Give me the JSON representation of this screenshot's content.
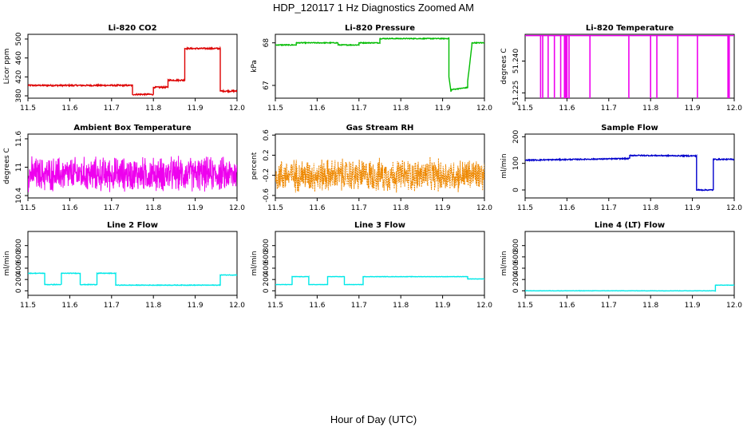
{
  "figure": {
    "title": "HDP_120117  1 Hz Diagnostics Zoomed AM",
    "xlabel": "Hour of Day (UTC)"
  },
  "chart_data": [
    {
      "type": "line",
      "title": "Li-820 CO2",
      "xlabel": "",
      "ylabel": "Licor ppm",
      "color": "#dd0000",
      "xlim": [
        11.5,
        12.0
      ],
      "ylim": [
        375,
        510
      ],
      "xticks": [
        "11.5",
        "11.6",
        "11.7",
        "11.8",
        "11.9",
        "12.0"
      ],
      "yticks": [
        380,
        420,
        460,
        500
      ],
      "x": [
        11.5,
        11.75,
        11.75,
        11.8,
        11.8,
        11.835,
        11.835,
        11.875,
        11.875,
        11.96,
        11.96,
        12.0
      ],
      "y": [
        402,
        402,
        383,
        383,
        398,
        398,
        413,
        413,
        480,
        480,
        390,
        390
      ],
      "noise": 1.5
    },
    {
      "type": "line",
      "title": "Li-820 Pressure",
      "xlabel": "",
      "ylabel": "kPa",
      "color": "#00bb00",
      "xlim": [
        11.5,
        12.0
      ],
      "ylim": [
        66.7,
        68.2
      ],
      "xticks": [
        "11.5",
        "11.6",
        "11.7",
        "11.8",
        "11.9",
        "12.0"
      ],
      "yticks": [
        67.0,
        68.0
      ],
      "x": [
        11.5,
        11.55,
        11.55,
        11.65,
        11.65,
        11.7,
        11.7,
        11.75,
        11.75,
        11.915,
        11.915,
        11.92,
        11.92,
        11.96,
        11.96,
        11.97,
        11.97,
        12.0
      ],
      "y": [
        67.95,
        67.95,
        68.0,
        68.0,
        67.95,
        67.95,
        68.0,
        68.0,
        68.1,
        68.1,
        67.2,
        66.85,
        66.9,
        66.95,
        67.1,
        67.95,
        68.0,
        68.0
      ],
      "noise": 0.01
    },
    {
      "type": "line",
      "title": "Li-820 Temperature",
      "xlabel": "",
      "ylabel": "degrees C",
      "color": "#ee00ee",
      "xlim": [
        11.5,
        12.0
      ],
      "ylim": [
        51.2225,
        51.2526
      ],
      "xticks": [
        "11.5",
        "11.6",
        "11.7",
        "11.8",
        "11.9",
        "12.0"
      ],
      "yticks": [
        "51.225",
        "51.240"
      ],
      "baseline": 51.252,
      "dips": [
        11.537,
        11.542,
        11.555,
        11.57,
        11.585,
        11.594,
        11.597,
        11.6,
        11.605,
        11.655,
        11.748,
        11.8,
        11.815,
        11.865,
        11.912,
        11.985,
        11.988
      ],
      "dip_to": 51.2225,
      "noise": 0
    },
    {
      "type": "line",
      "title": "Ambient Box Temperature",
      "xlabel": "",
      "ylabel": "degrees C",
      "color": "#ee00ee",
      "xlim": [
        11.5,
        12.0
      ],
      "ylim": [
        10.35,
        11.7
      ],
      "xticks": [
        "11.5",
        "11.6",
        "11.7",
        "11.8",
        "11.9",
        "12.0"
      ],
      "yticks": [
        10.4,
        11.0,
        11.6
      ],
      "x": [
        11.5,
        12.0
      ],
      "y": [
        10.85,
        10.85
      ],
      "noise": 0.42
    },
    {
      "type": "line",
      "title": "Gas Stream RH",
      "xlabel": "",
      "ylabel": "percent",
      "color": "#ee8800",
      "xlim": [
        11.5,
        12.0
      ],
      "ylim": [
        -0.65,
        0.62
      ],
      "xticks": [
        "11.5",
        "11.6",
        "11.7",
        "11.8",
        "11.9",
        "12.0"
      ],
      "yticks": [
        -0.6,
        -0.2,
        0.2,
        0.6
      ],
      "x": [
        11.5,
        12.0
      ],
      "y": [
        -0.2,
        -0.2
      ],
      "noise": 0.38
    },
    {
      "type": "line",
      "title": "Sample Flow",
      "xlabel": "",
      "ylabel": "ml/min",
      "color": "#0000cc",
      "xlim": [
        11.5,
        12.0
      ],
      "ylim": [
        -30,
        210
      ],
      "xticks": [
        "11.5",
        "11.6",
        "11.7",
        "11.8",
        "11.9",
        "12.0"
      ],
      "yticks": [
        0,
        100,
        200
      ],
      "x": [
        11.5,
        11.75,
        11.75,
        11.91,
        11.91,
        11.95,
        11.95,
        12.0
      ],
      "y": [
        112,
        118,
        130,
        128,
        0,
        0,
        115,
        115
      ],
      "noise": 2
    },
    {
      "type": "line",
      "title": "Line 2 Flow",
      "xlabel": "",
      "ylabel": "ml/min",
      "color": "#00e8e8",
      "xlim": [
        11.5,
        12.0
      ],
      "ylim": [
        -80,
        1050
      ],
      "xticks": [
        "11.5",
        "11.6",
        "11.7",
        "11.8",
        "11.9",
        "12.0"
      ],
      "yticks": [
        0,
        200,
        400,
        600,
        800
      ],
      "x": [
        11.5,
        11.54,
        11.54,
        11.58,
        11.58,
        11.625,
        11.625,
        11.665,
        11.665,
        11.71,
        11.71,
        11.96,
        11.96,
        12.0
      ],
      "y": [
        310,
        310,
        110,
        110,
        310,
        310,
        110,
        110,
        310,
        310,
        100,
        100,
        280,
        280
      ],
      "noise": 5
    },
    {
      "type": "line",
      "title": "Line 3 Flow",
      "xlabel": "",
      "ylabel": "ml/min",
      "color": "#00e8e8",
      "xlim": [
        11.5,
        12.0
      ],
      "ylim": [
        -80,
        1050
      ],
      "xticks": [
        "11.5",
        "11.6",
        "11.7",
        "11.8",
        "11.9",
        "12.0"
      ],
      "yticks": [
        0,
        200,
        400,
        600,
        800
      ],
      "x": [
        11.5,
        11.54,
        11.54,
        11.58,
        11.58,
        11.625,
        11.625,
        11.665,
        11.665,
        11.71,
        11.71,
        11.96,
        11.96,
        12.0
      ],
      "y": [
        110,
        110,
        250,
        250,
        110,
        110,
        250,
        250,
        110,
        110,
        250,
        250,
        210,
        210
      ],
      "noise": 3
    },
    {
      "type": "line",
      "title": "Line 4 (LT) Flow",
      "xlabel": "",
      "ylabel": "ml/min",
      "color": "#00e8e8",
      "xlim": [
        11.5,
        12.0
      ],
      "ylim": [
        -80,
        1050
      ],
      "xticks": [
        "11.5",
        "11.6",
        "11.7",
        "11.8",
        "11.9",
        "12.0"
      ],
      "yticks": [
        0,
        200,
        400,
        600,
        800
      ],
      "x": [
        11.5,
        11.955,
        11.955,
        12.0
      ],
      "y": [
        0,
        0,
        100,
        100
      ],
      "noise": 2
    }
  ]
}
